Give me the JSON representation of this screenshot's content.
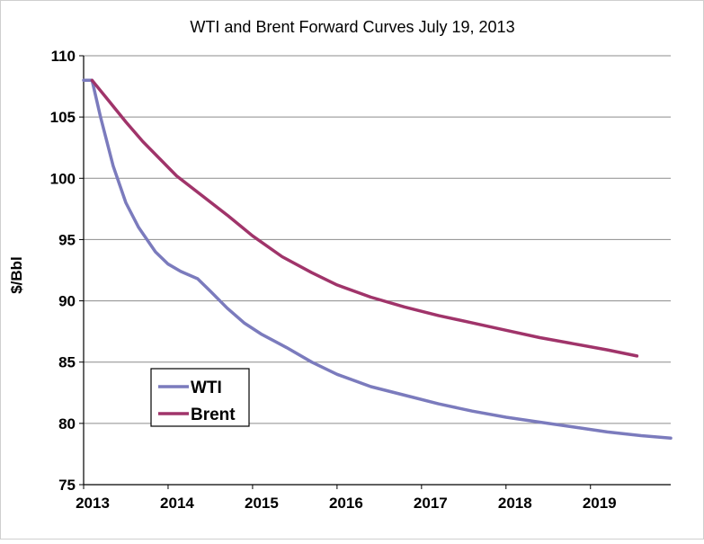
{
  "chart_data": {
    "type": "line",
    "title": "WTI and Brent Forward Curves July 19, 2013",
    "xlabel": "",
    "ylabel": "$/Bbl",
    "xlim": [
      2013,
      2019.95
    ],
    "ylim": [
      75,
      110
    ],
    "x_ticks": [
      "2013",
      "2014",
      "2015",
      "2016",
      "2017",
      "2018",
      "2019"
    ],
    "y_ticks": [
      "75",
      "80",
      "85",
      "90",
      "95",
      "100",
      "105",
      "110"
    ],
    "grid": "horizontal",
    "legend_position": "lower-left",
    "series": [
      {
        "name": "WTI",
        "color": "#7b7bbd",
        "x": [
          2013.0,
          2013.1,
          2013.2,
          2013.35,
          2013.5,
          2013.65,
          2013.85,
          2014.0,
          2014.15,
          2014.35,
          2014.5,
          2014.7,
          2014.9,
          2015.1,
          2015.4,
          2015.7,
          2016.0,
          2016.4,
          2016.8,
          2017.2,
          2017.6,
          2018.0,
          2018.4,
          2018.8,
          2019.2,
          2019.6,
          2019.95
        ],
        "y": [
          108.0,
          108.0,
          105.0,
          101.0,
          98.0,
          96.0,
          94.0,
          93.0,
          92.4,
          91.8,
          90.8,
          89.4,
          88.2,
          87.3,
          86.2,
          85.0,
          84.0,
          83.0,
          82.3,
          81.6,
          81.0,
          80.5,
          80.1,
          79.7,
          79.3,
          79.0,
          78.8
        ]
      },
      {
        "name": "Brent",
        "color": "#a0346a",
        "x": [
          2013.1,
          2013.3,
          2013.5,
          2013.7,
          2013.9,
          2014.1,
          2014.4,
          2014.7,
          2015.0,
          2015.35,
          2015.7,
          2016.0,
          2016.4,
          2016.8,
          2017.2,
          2017.6,
          2018.0,
          2018.4,
          2018.8,
          2019.2,
          2019.55
        ],
        "y": [
          108.0,
          106.3,
          104.6,
          103.0,
          101.6,
          100.2,
          98.6,
          97.0,
          95.3,
          93.6,
          92.3,
          91.3,
          90.3,
          89.5,
          88.8,
          88.2,
          87.6,
          87.0,
          86.5,
          86.0,
          85.5
        ]
      }
    ]
  }
}
